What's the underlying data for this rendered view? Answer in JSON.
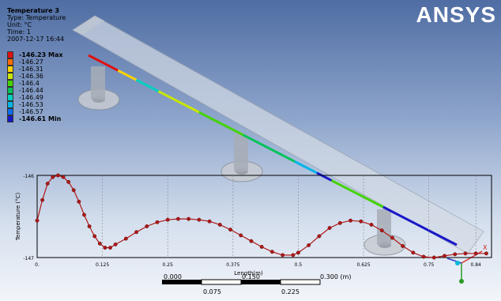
{
  "result_info": {
    "title": "Temperature 3",
    "type_line": "Type: Temperature",
    "unit_line": "Unit: °C",
    "time_line": "Time: 1",
    "date_line": "2007-12-17 16:44"
  },
  "legend": {
    "items": [
      {
        "label": "-146.23 Max",
        "color": "#e01010",
        "bold": true
      },
      {
        "label": "-146.27",
        "color": "#ff6a00",
        "bold": false
      },
      {
        "label": "-146.31",
        "color": "#ffd400",
        "bold": false
      },
      {
        "label": "-146.36",
        "color": "#c8e600",
        "bold": false
      },
      {
        "label": "-146.4",
        "color": "#44d300",
        "bold": false
      },
      {
        "label": "-146.44",
        "color": "#00c35a",
        "bold": false
      },
      {
        "label": "-146.49",
        "color": "#00d0c0",
        "bold": false
      },
      {
        "label": "-146.53",
        "color": "#00b4e8",
        "bold": false
      },
      {
        "label": "-146.57",
        "color": "#0a6cf0",
        "bold": false
      },
      {
        "label": "-146.61 Min",
        "color": "#1818c8",
        "bold": true
      }
    ]
  },
  "logo": {
    "text_main": "ANSYS"
  },
  "scale_bar": {
    "top_labels": [
      "0.000",
      "0.150",
      "0.300 (m)"
    ],
    "bottom_labels": [
      "0.075",
      "0.225"
    ]
  },
  "chart_data": {
    "type": "line",
    "title": "",
    "xlabel": "Length(m)",
    "ylabel": "Temperature (°C)",
    "xlim": [
      0,
      0.87
    ],
    "ylim": [
      -147,
      -146
    ],
    "x_ticks": [
      "0.",
      "0.125",
      "0.25",
      "0.375",
      "0.5",
      "0.625",
      "0.75",
      "0.84"
    ],
    "y_ticks": [
      "-146",
      "-147"
    ],
    "grid": true,
    "series": [
      {
        "color": "#b01818",
        "points": [
          [
            0.0,
            -146.55
          ],
          [
            0.01,
            -146.3
          ],
          [
            0.02,
            -146.1
          ],
          [
            0.03,
            -146.02
          ],
          [
            0.04,
            -146.0
          ],
          [
            0.05,
            -146.02
          ],
          [
            0.06,
            -146.08
          ],
          [
            0.07,
            -146.18
          ],
          [
            0.08,
            -146.32
          ],
          [
            0.09,
            -146.48
          ],
          [
            0.1,
            -146.62
          ],
          [
            0.11,
            -146.74
          ],
          [
            0.12,
            -146.83
          ],
          [
            0.13,
            -146.88
          ],
          [
            0.14,
            -146.88
          ],
          [
            0.15,
            -146.84
          ],
          [
            0.17,
            -146.77
          ],
          [
            0.19,
            -146.69
          ],
          [
            0.21,
            -146.62
          ],
          [
            0.23,
            -146.57
          ],
          [
            0.25,
            -146.54
          ],
          [
            0.27,
            -146.53
          ],
          [
            0.29,
            -146.53
          ],
          [
            0.31,
            -146.54
          ],
          [
            0.33,
            -146.56
          ],
          [
            0.35,
            -146.6
          ],
          [
            0.37,
            -146.66
          ],
          [
            0.39,
            -146.73
          ],
          [
            0.41,
            -146.8
          ],
          [
            0.43,
            -146.87
          ],
          [
            0.45,
            -146.93
          ],
          [
            0.47,
            -146.97
          ],
          [
            0.49,
            -146.97
          ],
          [
            0.5,
            -146.94
          ],
          [
            0.52,
            -146.85
          ],
          [
            0.54,
            -146.74
          ],
          [
            0.56,
            -146.64
          ],
          [
            0.58,
            -146.58
          ],
          [
            0.6,
            -146.55
          ],
          [
            0.62,
            -146.56
          ],
          [
            0.64,
            -146.6
          ],
          [
            0.66,
            -146.67
          ],
          [
            0.68,
            -146.76
          ],
          [
            0.7,
            -146.86
          ],
          [
            0.72,
            -146.94
          ],
          [
            0.74,
            -146.99
          ],
          [
            0.76,
            -147.0
          ],
          [
            0.78,
            -146.98
          ],
          [
            0.8,
            -146.96
          ],
          [
            0.82,
            -146.95
          ],
          [
            0.84,
            -146.95
          ],
          [
            0.86,
            -146.95
          ]
        ]
      }
    ]
  },
  "triad": {
    "x_label": "X"
  }
}
